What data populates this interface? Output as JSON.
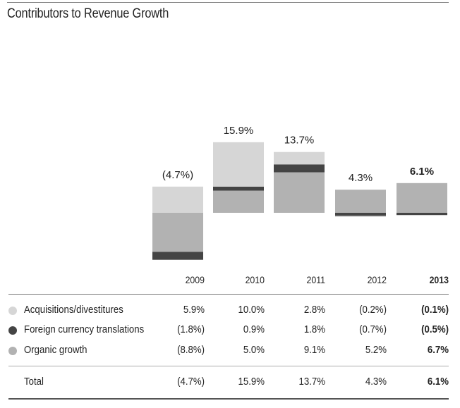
{
  "title": "Contributors to Revenue Growth",
  "colors": {
    "acquisitions": "#d6d6d6",
    "fx": "#444444",
    "organic": "#b2b2b2"
  },
  "chart_data": {
    "type": "bar",
    "stacked": true,
    "title": "Contributors to Revenue Growth",
    "categories": [
      "2009",
      "2010",
      "2011",
      "2012",
      "2013"
    ],
    "highlight_category": "2013",
    "series": [
      {
        "name": "Organic growth",
        "key": "organic",
        "values": [
          -8.8,
          5.0,
          9.1,
          5.2,
          6.7
        ]
      },
      {
        "name": "Foreign currency translations",
        "key": "fx",
        "values": [
          -1.8,
          0.9,
          1.8,
          -0.7,
          -0.5
        ]
      },
      {
        "name": "Acquisitions/divestitures",
        "key": "acquisitions",
        "values": [
          5.9,
          10.0,
          2.8,
          -0.2,
          -0.1
        ]
      }
    ],
    "totals": [
      -4.7,
      15.9,
      13.7,
      4.3,
      6.1
    ],
    "total_labels": [
      "(4.7%)",
      "15.9%",
      "13.7%",
      "4.3%",
      "6.1%"
    ],
    "xlabel": "",
    "ylabel": "",
    "ylim": [
      -11,
      16
    ],
    "grid": false,
    "legend": "table-below"
  },
  "table": {
    "years": [
      "2009",
      "2010",
      "2011",
      "2012",
      "2013"
    ],
    "rows": [
      {
        "label": "Acquisitions/divestitures",
        "key": "acquisitions",
        "values": [
          "5.9%",
          "10.0%",
          "2.8%",
          "(0.2%)",
          "(0.1%)"
        ]
      },
      {
        "label": "Foreign currency translations",
        "key": "fx",
        "values": [
          "(1.8%)",
          "0.9%",
          "1.8%",
          "(0.7%)",
          "(0.5%)"
        ]
      },
      {
        "label": "Organic growth",
        "key": "organic",
        "values": [
          "(8.8%)",
          "5.0%",
          "9.1%",
          "5.2%",
          "6.7%"
        ]
      }
    ],
    "total": {
      "label": "Total",
      "values": [
        "(4.7%)",
        "15.9%",
        "13.7%",
        "4.3%",
        "6.1%"
      ]
    }
  }
}
